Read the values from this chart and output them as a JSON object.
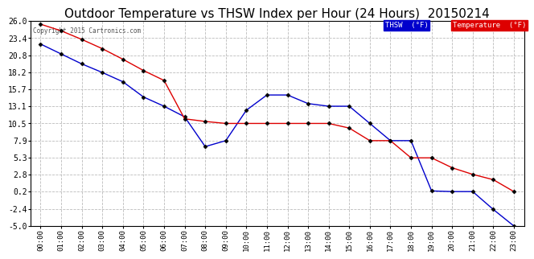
{
  "title": "Outdoor Temperature vs THSW Index per Hour (24 Hours)  20150214",
  "copyright": "Copyright 2015 Cartronics.com",
  "hours": [
    "00:00",
    "01:00",
    "02:00",
    "03:00",
    "04:00",
    "05:00",
    "06:00",
    "07:00",
    "08:00",
    "09:00",
    "10:00",
    "11:00",
    "12:00",
    "13:00",
    "14:00",
    "15:00",
    "16:00",
    "17:00",
    "18:00",
    "19:00",
    "20:00",
    "21:00",
    "22:00",
    "23:00"
  ],
  "temperature": [
    25.5,
    24.5,
    23.2,
    21.8,
    20.2,
    18.5,
    17.0,
    11.2,
    10.8,
    10.5,
    10.5,
    10.5,
    10.5,
    10.5,
    10.5,
    9.8,
    7.9,
    7.9,
    5.3,
    5.3,
    3.8,
    2.8,
    2.0,
    0.2
  ],
  "thsw": [
    22.5,
    21.0,
    19.5,
    18.2,
    16.8,
    14.5,
    13.1,
    11.5,
    7.0,
    7.9,
    12.5,
    14.8,
    14.8,
    13.5,
    13.1,
    13.1,
    10.5,
    7.9,
    7.9,
    0.3,
    0.2,
    0.2,
    -2.5,
    -5.0
  ],
  "ylim_min": -5.0,
  "ylim_max": 26.0,
  "yticks": [
    -5.0,
    -2.4,
    0.2,
    2.8,
    5.3,
    7.9,
    10.5,
    13.1,
    15.7,
    18.2,
    20.8,
    23.4,
    26.0
  ],
  "temp_color": "#dd0000",
  "thsw_color": "#0000cc",
  "background_color": "#ffffff",
  "plot_bg_color": "#ffffff",
  "grid_color": "#bbbbbb",
  "title_fontsize": 11,
  "marker_color_temp": "#000000",
  "marker_color_thsw": "#000000"
}
